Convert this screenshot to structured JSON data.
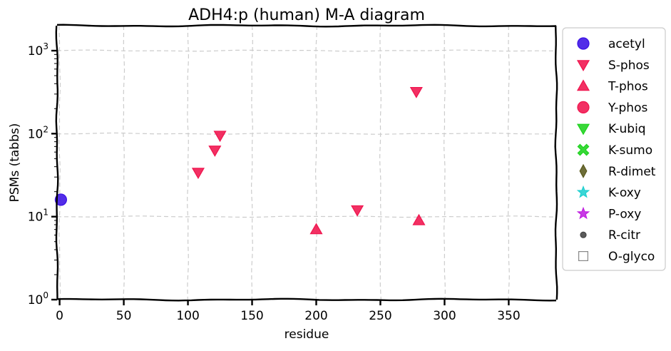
{
  "chart_data": {
    "type": "scatter",
    "title": "ADH4:p (human) M-A diagram",
    "xlabel": "residue",
    "ylabel": "PSMs (tabbs)",
    "xlim": [
      -2,
      387
    ],
    "ylim": [
      1,
      2000
    ],
    "yscale": "log",
    "grid": true,
    "legend_position": "outside-right",
    "x_ticks": [
      0,
      50,
      100,
      150,
      200,
      250,
      300,
      350
    ],
    "y_ticks": [
      {
        "value": 1,
        "base": "10",
        "exp": "0"
      },
      {
        "value": 10,
        "base": "10",
        "exp": "1"
      },
      {
        "value": 100,
        "base": "10",
        "exp": "2"
      },
      {
        "value": 1000,
        "base": "10",
        "exp": "3"
      }
    ],
    "series": [
      {
        "name": "acetyl",
        "marker": "circle",
        "color": "#3a10e5",
        "points": [
          [
            1,
            16
          ]
        ]
      },
      {
        "name": "S-phos",
        "marker": "triangle-down",
        "color": "#f0134d",
        "points": [
          [
            108,
            34
          ],
          [
            121,
            63
          ],
          [
            125,
            95
          ],
          [
            232,
            12
          ],
          [
            278,
            320
          ]
        ]
      },
      {
        "name": "T-phos",
        "marker": "triangle-up",
        "color": "#f0134d",
        "points": [
          [
            200,
            7
          ],
          [
            280,
            9
          ]
        ]
      },
      {
        "name": "Y-phos",
        "marker": "circle",
        "color": "#f0134d",
        "points": []
      },
      {
        "name": "K-ubiq",
        "marker": "triangle-down",
        "color": "#1ed31e",
        "points": []
      },
      {
        "name": "K-sumo",
        "marker": "x",
        "color": "#1ed31e",
        "points": []
      },
      {
        "name": "R-dimet",
        "marker": "diamond",
        "color": "#5a5a1e",
        "points": []
      },
      {
        "name": "K-oxy",
        "marker": "star",
        "color": "#20d0d0",
        "points": []
      },
      {
        "name": "P-oxy",
        "marker": "star",
        "color": "#c020e0",
        "points": []
      },
      {
        "name": "R-citr",
        "marker": "dot",
        "color": "#444444",
        "points": []
      },
      {
        "name": "O-glyco",
        "marker": "square-open",
        "color": "#888888",
        "points": []
      }
    ]
  }
}
